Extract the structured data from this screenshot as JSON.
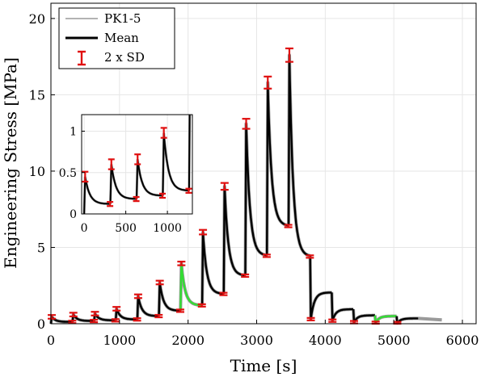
{
  "chart_data": {
    "type": "line",
    "xlabel": "Time [s]",
    "ylabel": "Engineering Stress [MPa]",
    "xlim": [
      0,
      6200
    ],
    "ylim": [
      0,
      21
    ],
    "xticks": [
      0,
      1000,
      2000,
      3000,
      4000,
      5000,
      6000
    ],
    "yticks": [
      0,
      5,
      10,
      15,
      20
    ],
    "grid": true,
    "legend": {
      "placement": "top-left",
      "entries": [
        {
          "label": "PK1-5",
          "color": "#9a9a9a",
          "style": "thin-line"
        },
        {
          "label": "Mean",
          "color": "#000000",
          "style": "thick-line"
        },
        {
          "label": "2 x SD",
          "color": "#e01010",
          "style": "errorbar"
        }
      ]
    },
    "colors": {
      "mean": "#000000",
      "samples": "#9a9a9a",
      "sd": "#e01010",
      "highlight": "#33dd33"
    },
    "loading_steps": [
      {
        "t0": 0,
        "peak": 0.45,
        "relaxed": 0.12,
        "highlight": false
      },
      {
        "t0": 315,
        "peak": 0.6,
        "relaxed": 0.18,
        "highlight": false
      },
      {
        "t0": 630,
        "peak": 0.66,
        "relaxed": 0.22,
        "highlight": false
      },
      {
        "t0": 945,
        "peak": 0.98,
        "relaxed": 0.28,
        "highlight": false
      },
      {
        "t0": 1260,
        "peak": 1.8,
        "relaxed": 0.5,
        "highlight": false
      },
      {
        "t0": 1575,
        "peak": 2.7,
        "relaxed": 0.85,
        "highlight": false
      },
      {
        "t0": 1890,
        "peak": 3.95,
        "relaxed": 1.2,
        "highlight": true
      },
      {
        "t0": 2205,
        "peak": 6.0,
        "relaxed": 1.95,
        "highlight": false
      },
      {
        "t0": 2520,
        "peak": 9.0,
        "relaxed": 3.15,
        "highlight": false
      },
      {
        "t0": 2835,
        "peak": 13.1,
        "relaxed": 4.45,
        "highlight": false
      },
      {
        "t0": 3150,
        "peak": 15.8,
        "relaxed": 6.4,
        "highlight": false
      },
      {
        "t0": 3465,
        "peak": 17.6,
        "relaxed": 4.4,
        "highlight": false
      }
    ],
    "unloading_steps": [
      {
        "t0": 3780,
        "start": 4.85,
        "drop": 0.3,
        "recover": 2.05,
        "highlight": false
      },
      {
        "t0": 4095,
        "start": 2.05,
        "drop": 0.2,
        "recover": 0.95,
        "highlight": false
      },
      {
        "t0": 4410,
        "start": 0.95,
        "drop": 0.1,
        "recover": 0.55,
        "highlight": false
      },
      {
        "t0": 4725,
        "start": 0.55,
        "drop": 0.06,
        "recover": 0.5,
        "highlight": true
      },
      {
        "t0": 5040,
        "start": 0.45,
        "drop": 0.04,
        "recover": 0.35,
        "highlight": false
      }
    ],
    "tail": {
      "t_end": 5700,
      "value": 0.25
    },
    "inset": {
      "xlim": [
        -30,
        1300
      ],
      "ylim": [
        0,
        1.2
      ],
      "xticks": [
        0,
        500,
        1000
      ],
      "yticks": [
        0,
        0.5,
        1
      ],
      "ytick_labels": [
        "0",
        "0.5",
        "1"
      ],
      "grid": true
    }
  }
}
